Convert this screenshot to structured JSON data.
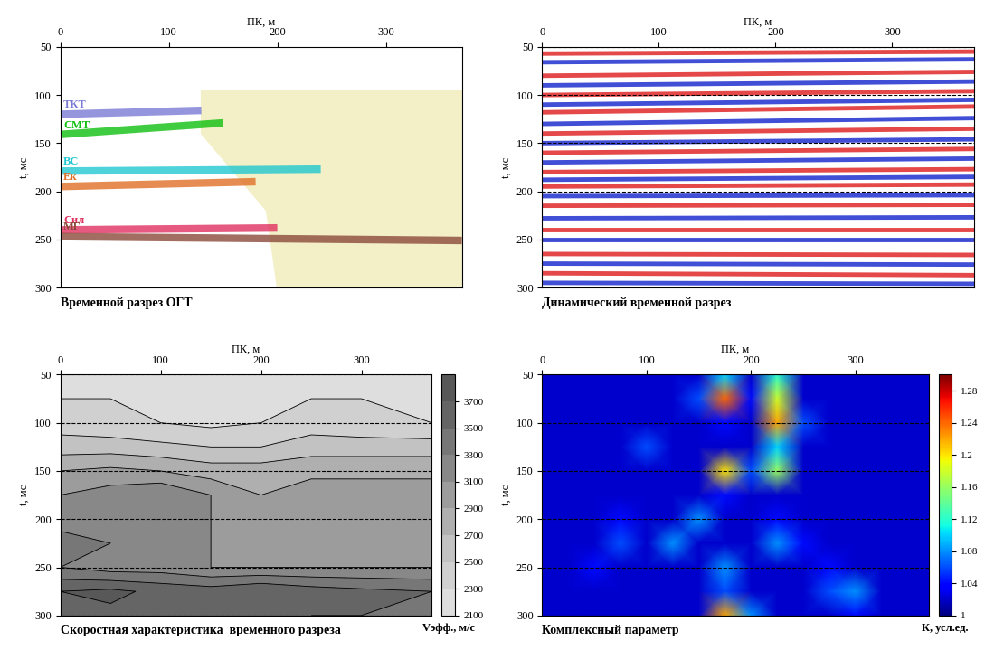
{
  "chart_data": [
    {
      "type": "horizons",
      "title": "Временной разрез ОГТ",
      "xlabel": "ПК, м",
      "ylabel": "t, мс",
      "xlim": [
        0,
        370
      ],
      "ylim": [
        300,
        50
      ],
      "xticks": [
        0,
        100,
        200,
        300
      ],
      "yticks": [
        50,
        100,
        150,
        200,
        250,
        300
      ],
      "grid": false,
      "zone": {
        "color": "#f3efc6",
        "x": [
          130,
          370,
          370,
          200,
          190,
          130
        ],
        "t": [
          95,
          95,
          300,
          300,
          220,
          140
        ]
      },
      "series": [
        {
          "name": "ТКТ",
          "color": "#7b7bd6",
          "x": [
            0,
            130
          ],
          "values": [
            120,
            116
          ]
        },
        {
          "name": "СМТ",
          "color": "#10c010",
          "x": [
            0,
            150
          ],
          "values": [
            141,
            129
          ]
        },
        {
          "name": "ВС",
          "color": "#20c8d0",
          "x": [
            0,
            240
          ],
          "values": [
            179,
            177
          ]
        },
        {
          "name": "Ек",
          "color": "#e07028",
          "x": [
            0,
            180
          ],
          "values": [
            195,
            190
          ]
        },
        {
          "name": "Сил",
          "color": "#e03060",
          "x": [
            0,
            200
          ],
          "values": [
            240,
            238
          ]
        },
        {
          "name": "МГ",
          "color": "#8b4a3a",
          "x": [
            0,
            370
          ],
          "values": [
            247,
            251
          ]
        }
      ]
    },
    {
      "type": "events",
      "title": "Динамический временной разрез",
      "xlabel": "ПК, м",
      "ylabel": "t, мс",
      "xlim": [
        0,
        370
      ],
      "ylim": [
        300,
        50
      ],
      "xticks": [
        0,
        100,
        200,
        300
      ],
      "yticks": [
        50,
        100,
        150,
        200,
        250,
        300
      ],
      "grid": true,
      "series": [
        {
          "color": "#e02828",
          "x": [
            0,
            370
          ],
          "t_start": [
            57,
            80,
            100,
            118,
            140,
            160,
            180,
            195,
            215,
            240,
            265,
            285
          ],
          "t_end": [
            55,
            76,
            96,
            112,
            135,
            156,
            177,
            193,
            214,
            240,
            266,
            287
          ]
        },
        {
          "color": "#2030d0",
          "x": [
            0,
            370
          ],
          "t_start": [
            66,
            90,
            110,
            130,
            150,
            170,
            188,
            205,
            228,
            250,
            275,
            295
          ],
          "t_end": [
            63,
            86,
            105,
            124,
            146,
            166,
            185,
            204,
            227,
            250,
            276,
            296
          ]
        }
      ]
    },
    {
      "type": "contour",
      "title": "Скоростная характеристика  временного разреза",
      "xlabel": "ПК, м",
      "ylabel": "t, мс",
      "xlim": [
        0,
        370
      ],
      "ylim": [
        300,
        50
      ],
      "xticks": [
        0,
        100,
        200,
        300
      ],
      "yticks": [
        50,
        100,
        150,
        200,
        250,
        300
      ],
      "grid": true,
      "x": [
        0,
        50,
        100,
        150,
        200,
        250,
        300,
        370
      ],
      "t": [
        50,
        75,
        100,
        125,
        150,
        175,
        200,
        225,
        250,
        275,
        300
      ],
      "cells": [
        [
          2200,
          2200,
          2250,
          2250,
          2200,
          2200,
          2250,
          2200
        ],
        [
          2300,
          2300,
          2250,
          2200,
          2250,
          2300,
          2300,
          2250
        ],
        [
          2400,
          2350,
          2300,
          2250,
          2300,
          2400,
          2350,
          2300
        ],
        [
          2600,
          2600,
          2550,
          2500,
          2500,
          2600,
          2600,
          2600
        ],
        [
          2900,
          2950,
          2900,
          2800,
          2800,
          2850,
          2850,
          2850
        ],
        [
          3100,
          3200,
          3300,
          3100,
          2900,
          3000,
          3000,
          3000
        ],
        [
          3200,
          3300,
          3250,
          3100,
          3000,
          2950,
          3000,
          3000
        ],
        [
          3400,
          3300,
          3200,
          3100,
          3000,
          3000,
          3000,
          3000
        ],
        [
          3300,
          3200,
          3200,
          3100,
          3100,
          3100,
          3100,
          3100
        ],
        [
          3700,
          3750,
          3650,
          3600,
          3700,
          3600,
          3550,
          3500
        ],
        [
          3600,
          3650,
          3600,
          3550,
          3600,
          3500,
          3500,
          3450
        ]
      ],
      "colorbar_label": "Vэфф., м/с",
      "clim": [
        2100,
        3800
      ],
      "cticks": [
        2100,
        2300,
        2500,
        2700,
        2900,
        3100,
        3300,
        3500,
        3700
      ]
    },
    {
      "type": "heatmap",
      "title": "Комплексный параметр",
      "xlabel": "ПК, м",
      "ylabel": "t, мс",
      "xlim": [
        0,
        370
      ],
      "ylim": [
        300,
        50
      ],
      "xticks": [
        0,
        100,
        200,
        300
      ],
      "yticks": [
        50,
        100,
        150,
        200,
        250,
        300
      ],
      "grid": true,
      "x": [
        0,
        25,
        50,
        75,
        100,
        125,
        150,
        175,
        200,
        225,
        250,
        275,
        300,
        325,
        350,
        375
      ],
      "t": [
        50,
        75,
        100,
        125,
        150,
        175,
        200,
        225,
        250,
        275,
        300
      ],
      "cells": [
        [
          1.02,
          1.02,
          1.02,
          1.02,
          1.02,
          1.02,
          1.02,
          1.1,
          1.02,
          1.12,
          1.02,
          1.02,
          1.02,
          1.02,
          1.02,
          1.02
        ],
        [
          1.02,
          1.02,
          1.02,
          1.02,
          1.02,
          1.02,
          1.06,
          1.24,
          1.04,
          1.18,
          1.02,
          1.02,
          1.02,
          1.02,
          1.02,
          1.02
        ],
        [
          1.02,
          1.02,
          1.02,
          1.02,
          1.02,
          1.02,
          1.02,
          1.04,
          1.02,
          1.22,
          1.06,
          1.02,
          1.02,
          1.02,
          1.02,
          1.02
        ],
        [
          1.02,
          1.02,
          1.02,
          1.02,
          1.06,
          1.02,
          1.02,
          1.02,
          1.02,
          1.1,
          1.02,
          1.02,
          1.02,
          1.02,
          1.02,
          1.02
        ],
        [
          1.02,
          1.02,
          1.02,
          1.02,
          1.02,
          1.02,
          1.02,
          1.2,
          1.06,
          1.16,
          1.02,
          1.02,
          1.02,
          1.02,
          1.02,
          1.02
        ],
        [
          1.02,
          1.02,
          1.02,
          1.02,
          1.02,
          1.02,
          1.02,
          1.04,
          1.02,
          1.02,
          1.02,
          1.02,
          1.02,
          1.02,
          1.02,
          1.02
        ],
        [
          1.02,
          1.02,
          1.02,
          1.04,
          1.02,
          1.02,
          1.08,
          1.02,
          1.02,
          1.04,
          1.02,
          1.02,
          1.02,
          1.02,
          1.02,
          1.02
        ],
        [
          1.02,
          1.02,
          1.02,
          1.06,
          1.02,
          1.08,
          1.02,
          1.02,
          1.02,
          1.08,
          1.04,
          1.02,
          1.02,
          1.02,
          1.02,
          1.02
        ],
        [
          1.02,
          1.02,
          1.04,
          1.02,
          1.02,
          1.02,
          1.02,
          1.08,
          1.02,
          1.02,
          1.02,
          1.04,
          1.02,
          1.02,
          1.02,
          1.02
        ],
        [
          1.02,
          1.02,
          1.02,
          1.02,
          1.02,
          1.02,
          1.02,
          1.06,
          1.02,
          1.02,
          1.02,
          1.06,
          1.08,
          1.02,
          1.02,
          1.02
        ],
        [
          1.02,
          1.02,
          1.02,
          1.02,
          1.02,
          1.02,
          1.02,
          1.22,
          1.08,
          1.02,
          1.02,
          1.02,
          1.04,
          1.02,
          1.02,
          1.02
        ]
      ],
      "colorbar_label": "К, усл.ед.",
      "clim": [
        1,
        1.3
      ],
      "cticks": [
        1,
        1.04,
        1.08,
        1.12,
        1.16,
        1.2,
        1.24,
        1.28
      ]
    }
  ]
}
